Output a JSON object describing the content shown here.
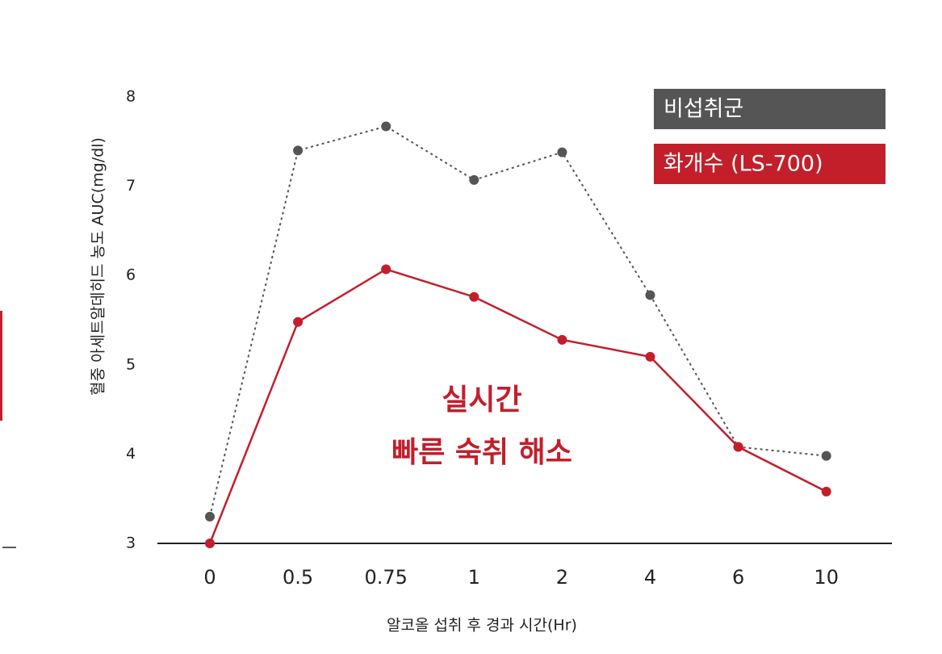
{
  "chart_data": {
    "type": "line",
    "x_label": "알코올 섭취 후 경과 시간(Hr)",
    "y_label": "혈중 아세트알데히드 농도 AUC(mg/dl)",
    "categories": [
      "0",
      "0.5",
      "0.75",
      "1",
      "2",
      "4",
      "6",
      "10"
    ],
    "series": [
      {
        "name": "비섭취군",
        "color": "#555555",
        "line_style": "dotted",
        "values": [
          3.3,
          7.4,
          7.67,
          7.07,
          7.38,
          5.78,
          4.08,
          3.98
        ]
      },
      {
        "name": "화개수 (LS-700)",
        "color": "#c21f2b",
        "line_style": "solid",
        "values": [
          3.0,
          5.48,
          6.07,
          5.76,
          5.28,
          5.09,
          4.08,
          3.58
        ]
      }
    ],
    "ylim": [
      3,
      8
    ],
    "yticks": [
      3,
      4,
      5,
      6,
      7,
      8
    ],
    "grid": false,
    "annotations": [
      "실시간",
      "빠른 숙취 해소"
    ]
  }
}
